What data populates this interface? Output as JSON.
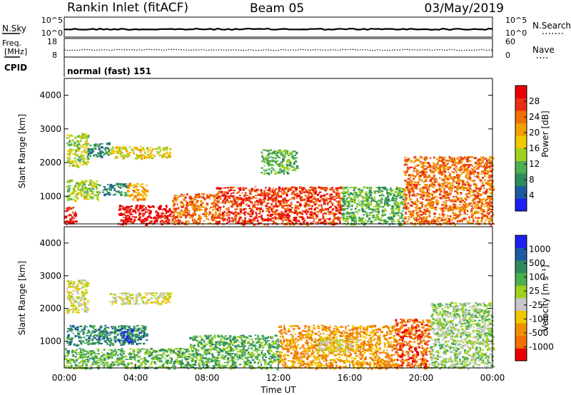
{
  "header": {
    "station": "Rankin Inlet (fitACF)",
    "beam": "Beam 05",
    "date": "03/May/2019"
  },
  "strips": {
    "nsky_label": "N.Sky",
    "nsky_ticks": [
      "10^5",
      "10^0"
    ],
    "nsearch_label": "N.Search",
    "nsearch_ticks": [
      "10^5",
      "10^0"
    ],
    "freq_label_1": "Freq.",
    "freq_label_2": "[MHz]",
    "freq_ticks": [
      "18",
      "8"
    ],
    "nave_label": "Nave",
    "nave_ticks": [
      "60",
      "0"
    ],
    "cpid_label": "CPID",
    "cpid_value": "normal (fast) 151"
  },
  "chart_data": [
    {
      "type": "heatmap",
      "name": "power-panel",
      "ylabel": "Slant Range [km]",
      "xlabel": "",
      "yticks": [
        "1000",
        "2000",
        "3000",
        "4000"
      ],
      "ylim": [
        180,
        4500
      ],
      "xlim": [
        0,
        24
      ],
      "colorbar_label": "Power [dB]",
      "colorbar_ticks": [
        "4",
        "8",
        "12",
        "16",
        "20",
        "24",
        "28"
      ],
      "colorbar_colors": [
        "#1e1ef0",
        "#1e5aa0",
        "#2f8a5f",
        "#4caf50",
        "#9ed21e",
        "#f0c800",
        "#f0a000",
        "#f07000",
        "#e83010",
        "#e80000"
      ],
      "bands": [
        {
          "t0": 0.0,
          "t1": 0.6,
          "r0": 180,
          "r1": 700,
          "level": 9
        },
        {
          "t0": 0.1,
          "t1": 1.9,
          "r0": 900,
          "r1": 1500,
          "level": 4
        },
        {
          "t0": 1.9,
          "t1": 3.5,
          "r0": 1050,
          "r1": 1400,
          "level": 2
        },
        {
          "t0": 3.5,
          "t1": 4.6,
          "r0": 900,
          "r1": 1400,
          "level": 6
        },
        {
          "t0": 0.1,
          "t1": 1.3,
          "r0": 1900,
          "r1": 2900,
          "level": 4
        },
        {
          "t0": 1.3,
          "t1": 2.5,
          "r0": 2200,
          "r1": 2600,
          "level": 2
        },
        {
          "t0": 2.5,
          "t1": 5.9,
          "r0": 2150,
          "r1": 2500,
          "level": 5
        },
        {
          "t0": 3.0,
          "t1": 6.0,
          "r0": 180,
          "r1": 750,
          "level": 9
        },
        {
          "t0": 6.0,
          "t1": 8.5,
          "r0": 180,
          "r1": 1100,
          "level": 7
        },
        {
          "t0": 8.5,
          "t1": 15.5,
          "r0": 180,
          "r1": 1300,
          "level": 8
        },
        {
          "t0": 11.0,
          "t1": 13.0,
          "r0": 1700,
          "r1": 2400,
          "level": 3
        },
        {
          "t0": 15.5,
          "t1": 19.0,
          "r0": 180,
          "r1": 1300,
          "level": 3
        },
        {
          "t0": 19.0,
          "t1": 24.0,
          "r0": 180,
          "r1": 2200,
          "level": 7
        }
      ]
    },
    {
      "type": "heatmap",
      "name": "velocity-panel",
      "ylabel": "Slant Range [km]",
      "xlabel": "Time UT",
      "yticks": [
        "1000",
        "2000",
        "3000",
        "4000"
      ],
      "xticks": [
        "00:00",
        "04:00",
        "08:00",
        "12:00",
        "16:00",
        "20:00",
        "00:00"
      ],
      "ylim": [
        180,
        4500
      ],
      "xlim": [
        0,
        24
      ],
      "colorbar_label": "Velocity [m s⁻¹]",
      "colorbar_ticks": [
        "-1000",
        "-500",
        "-100",
        "-25",
        "25",
        "100",
        "500",
        "1000"
      ],
      "colorbar_colors": [
        "#e80000",
        "#f07000",
        "#f09000",
        "#f0c800",
        "#c8c8c8",
        "#9ed21e",
        "#4caf50",
        "#2f8a5f",
        "#1e5aa0",
        "#1e1ef0"
      ],
      "bands": [
        {
          "t0": 0.1,
          "t1": 4.6,
          "r0": 900,
          "r1": 1500,
          "level": 7
        },
        {
          "t0": 2.8,
          "t1": 3.8,
          "r0": 1000,
          "r1": 1400,
          "level": 8
        },
        {
          "t0": 0.1,
          "t1": 1.3,
          "r0": 1900,
          "r1": 2900,
          "level": 4
        },
        {
          "t0": 2.5,
          "t1": 5.9,
          "r0": 2150,
          "r1": 2500,
          "level": 4
        },
        {
          "t0": 0.0,
          "t1": 7.0,
          "r0": 180,
          "r1": 800,
          "level": 6
        },
        {
          "t0": 7.0,
          "t1": 12.0,
          "r0": 180,
          "r1": 1200,
          "level": 6
        },
        {
          "t0": 12.0,
          "t1": 18.5,
          "r0": 180,
          "r1": 1500,
          "level": 2
        },
        {
          "t0": 14.0,
          "t1": 16.5,
          "r0": 700,
          "r1": 1100,
          "level": 4
        },
        {
          "t0": 18.5,
          "t1": 20.5,
          "r0": 180,
          "r1": 1700,
          "level": 1
        },
        {
          "t0": 20.5,
          "t1": 24.0,
          "r0": 180,
          "r1": 2200,
          "level": 5
        }
      ]
    }
  ]
}
